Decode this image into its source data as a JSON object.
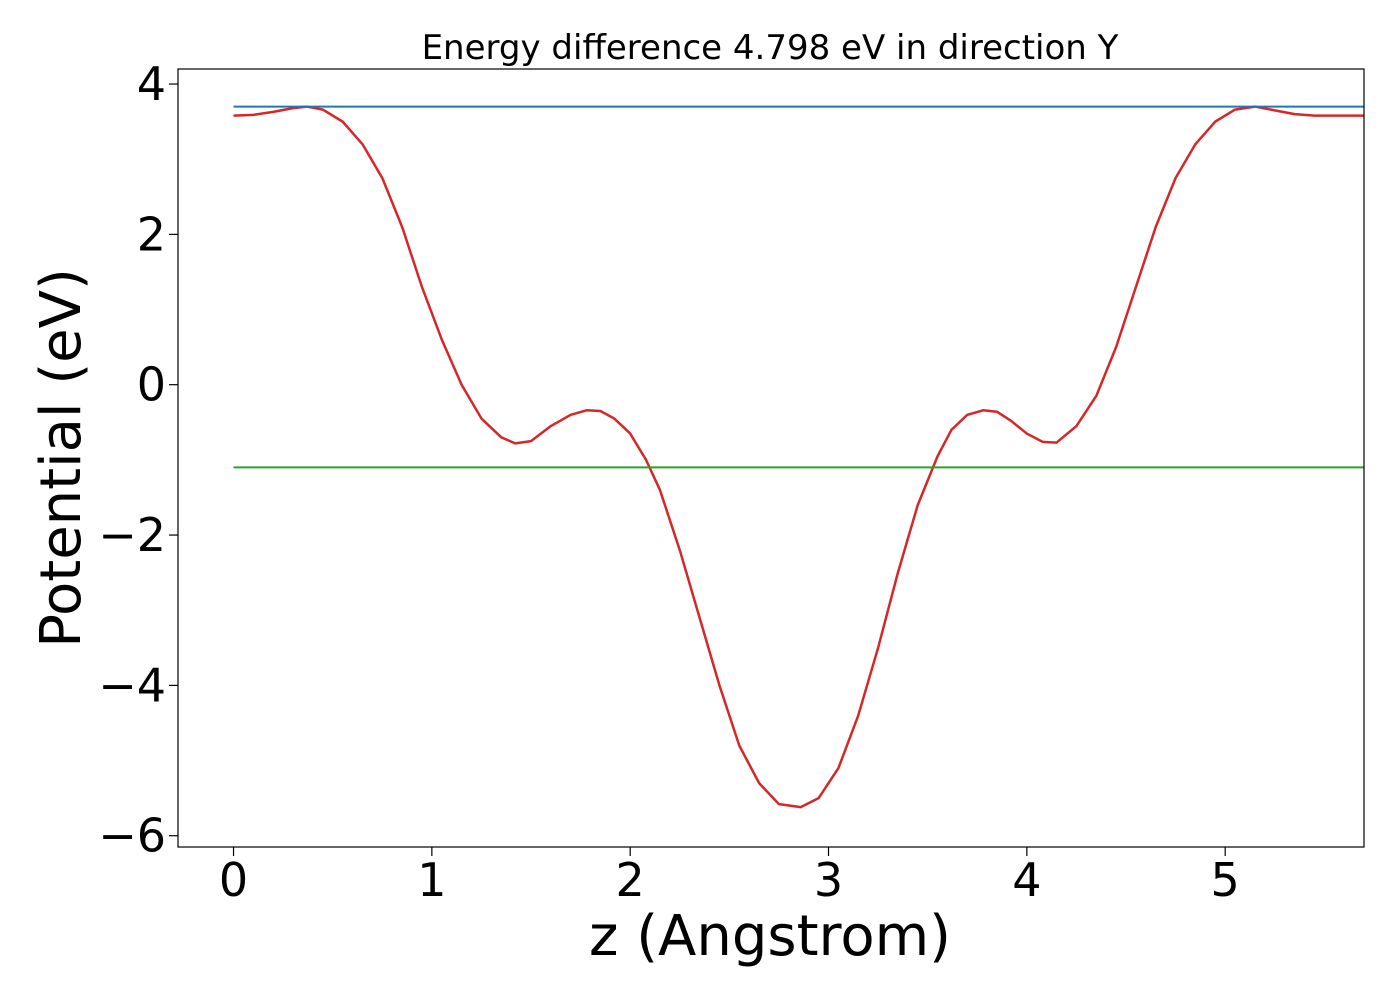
{
  "chart_data": {
    "type": "line",
    "title": "Energy difference 4.798 eV in direction Y",
    "xlabel": "z (Angstrom)",
    "ylabel": "Potential (eV)",
    "xlim": [
      -0.28,
      5.7
    ],
    "ylim": [
      -6.15,
      4.2
    ],
    "xticks": [
      0,
      1,
      2,
      3,
      4,
      5
    ],
    "yticks": [
      -6,
      -4,
      -2,
      0,
      2,
      4
    ],
    "xtick_labels": [
      "0",
      "1",
      "2",
      "3",
      "4",
      "5"
    ],
    "ytick_labels": [
      "−6",
      "−4",
      "−2",
      "0",
      "2",
      "4"
    ],
    "grid": false,
    "legend": "none",
    "series": [
      {
        "color": "#d62728",
        "x": [
          0,
          0.1,
          0.2,
          0.3,
          0.37,
          0.45,
          0.55,
          0.65,
          0.75,
          0.85,
          0.95,
          1.05,
          1.15,
          1.25,
          1.35,
          1.42,
          1.5,
          1.6,
          1.7,
          1.78,
          1.85,
          1.92,
          2.0,
          2.08,
          2.15,
          2.25,
          2.35,
          2.45,
          2.55,
          2.65,
          2.75,
          2.86,
          2.95,
          3.05,
          3.15,
          3.25,
          3.35,
          3.45,
          3.55,
          3.62,
          3.7,
          3.78,
          3.85,
          3.92,
          4.0,
          4.08,
          4.15,
          4.25,
          4.35,
          4.45,
          4.55,
          4.65,
          4.75,
          4.85,
          4.95,
          5.05,
          5.15,
          5.25,
          5.35,
          5.45,
          5.55,
          5.7
        ],
        "y": [
          3.58,
          3.59,
          3.63,
          3.68,
          3.7,
          3.66,
          3.5,
          3.2,
          2.75,
          2.1,
          1.3,
          0.6,
          0.0,
          -0.45,
          -0.7,
          -0.78,
          -0.75,
          -0.55,
          -0.4,
          -0.34,
          -0.35,
          -0.45,
          -0.65,
          -1.0,
          -1.4,
          -2.2,
          -3.1,
          -4.0,
          -4.8,
          -5.3,
          -5.58,
          -5.62,
          -5.5,
          -5.1,
          -4.4,
          -3.5,
          -2.5,
          -1.6,
          -0.95,
          -0.6,
          -0.4,
          -0.34,
          -0.36,
          -0.48,
          -0.65,
          -0.76,
          -0.77,
          -0.55,
          -0.15,
          0.5,
          1.3,
          2.1,
          2.75,
          3.2,
          3.5,
          3.66,
          3.7,
          3.65,
          3.6,
          3.58,
          3.58,
          3.58
        ]
      },
      {
        "color": "#1f77b4",
        "x": [
          0,
          5.7
        ],
        "y": [
          3.7,
          3.7
        ]
      },
      {
        "color": "#2ca02c",
        "x": [
          0,
          5.7
        ],
        "y": [
          -1.1,
          -1.1
        ]
      }
    ]
  }
}
